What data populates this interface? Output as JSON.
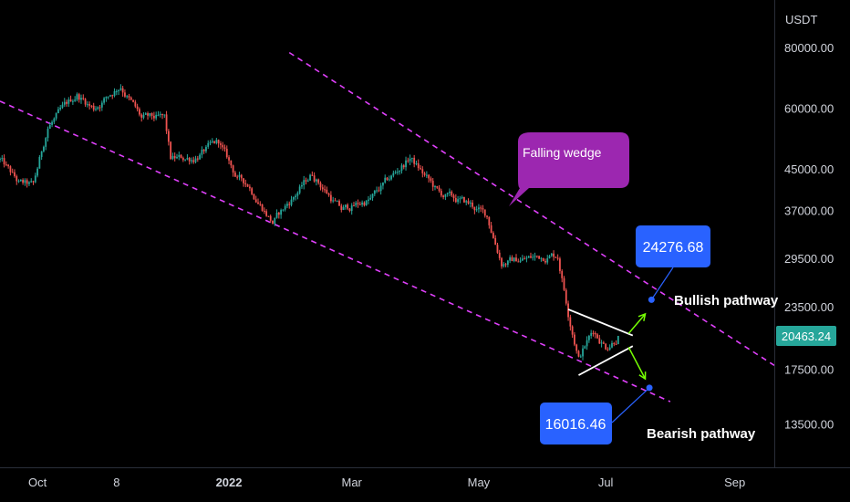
{
  "chart_data": {
    "type": "candlestick",
    "currency": "USDT",
    "y_scale": "log",
    "ylim": [
      11000,
      100000
    ],
    "x_start": "2021-09-13",
    "x_end": "2022-09-20",
    "y_ticks": [
      "80000.00",
      "60000.00",
      "45000.00",
      "37000.00",
      "29500.00",
      "23500.00",
      "17500.00",
      "13500.00"
    ],
    "x_ticks": [
      {
        "label": "Oct",
        "date": "2021-10-01",
        "bold": false
      },
      {
        "label": "8",
        "date": "2021-11-08",
        "bold": false
      },
      {
        "label": "2022",
        "date": "2022-01-01",
        "bold": true
      },
      {
        "label": "Mar",
        "date": "2022-03-01",
        "bold": false
      },
      {
        "label": "May",
        "date": "2022-05-01",
        "bold": false
      },
      {
        "label": "Jul",
        "date": "2022-07-01",
        "bold": false
      },
      {
        "label": "Sep",
        "date": "2022-09-01",
        "bold": false
      }
    ],
    "current_price": {
      "label": "20463.24",
      "value": 20463.24,
      "color": "#26a69a"
    },
    "price_path": [
      [
        "2021-09-13",
        47000
      ],
      [
        "2021-09-22",
        42000
      ],
      [
        "2021-09-29",
        41500
      ],
      [
        "2021-10-06",
        55000
      ],
      [
        "2021-10-20",
        64000
      ],
      [
        "2021-10-28",
        60000
      ],
      [
        "2021-11-10",
        67000
      ],
      [
        "2021-11-20",
        57000
      ],
      [
        "2021-12-01",
        57000
      ],
      [
        "2021-12-04",
        47000
      ],
      [
        "2021-12-15",
        47500
      ],
      [
        "2021-12-27",
        51000
      ],
      [
        "2022-01-05",
        43000
      ],
      [
        "2022-01-10",
        42000
      ],
      [
        "2022-01-22",
        35000
      ],
      [
        "2022-02-10",
        44000
      ],
      [
        "2022-02-24",
        37000
      ],
      [
        "2022-03-10",
        39000
      ],
      [
        "2022-03-29",
        47500
      ],
      [
        "2022-04-12",
        40000
      ],
      [
        "2022-04-27",
        38000
      ],
      [
        "2022-05-05",
        36000
      ],
      [
        "2022-05-12",
        29000
      ],
      [
        "2022-05-25",
        29500
      ],
      [
        "2022-06-05",
        30000
      ],
      [
        "2022-06-08",
        30000
      ],
      [
        "2022-06-13",
        23000
      ],
      [
        "2022-06-18",
        18500
      ],
      [
        "2022-06-25",
        21000
      ],
      [
        "2022-07-01",
        19500
      ],
      [
        "2022-07-07",
        20463
      ]
    ],
    "volatility": 0.022,
    "up_color": "#26a69a",
    "down_color": "#ef5350",
    "lines": [
      {
        "name": "upper-wedge-line",
        "color": "#e040fb",
        "dashed": true,
        "from": [
          "2022-01-30",
          78000
        ],
        "to": [
          "2022-09-20",
          17800
        ]
      },
      {
        "name": "lower-wedge-line",
        "color": "#e040fb",
        "dashed": true,
        "from": [
          "2021-09-13",
          62000
        ],
        "to": [
          "2022-08-01",
          15000
        ]
      },
      {
        "name": "triangle-upper-line",
        "color": "#ffffff",
        "dashed": false,
        "from": [
          "2022-06-13",
          23200
        ],
        "to": [
          "2022-07-14",
          20500
        ]
      },
      {
        "name": "triangle-lower-line",
        "color": "#ffffff",
        "dashed": false,
        "from": [
          "2022-06-18",
          17000
        ],
        "to": [
          "2022-07-14",
          19500
        ]
      }
    ],
    "arrows": [
      {
        "name": "bullish-arrow",
        "color": "#76ff03",
        "from": [
          "2022-07-12",
          20700
        ],
        "to": [
          "2022-07-20",
          22700
        ]
      },
      {
        "name": "bearish-arrow",
        "color": "#76ff03",
        "from": [
          "2022-07-12",
          19400
        ],
        "to": [
          "2022-07-20",
          16700
        ]
      }
    ],
    "targets": [
      {
        "name": "bullish-target",
        "value": 24276.68,
        "label": "24276.68",
        "date": "2022-07-23",
        "color": "#2962ff"
      },
      {
        "name": "bearish-target",
        "value": 16016.46,
        "label": "16016.46",
        "date": "2022-07-22",
        "color": "#2962ff"
      }
    ],
    "annotations": {
      "falling_wedge": {
        "text": "Falling wedge",
        "color": "#9c27b0"
      },
      "bullish_pathway": "Bullish pathway",
      "bearish_pathway": "Bearish pathway"
    }
  }
}
